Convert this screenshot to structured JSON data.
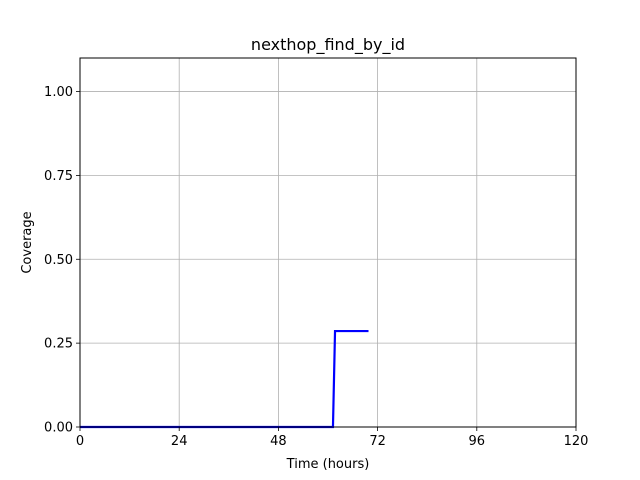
{
  "chart_data": {
    "type": "line",
    "title": "nexthop_find_by_id",
    "xlabel": "Time (hours)",
    "ylabel": "Coverage",
    "xlim": [
      0,
      120
    ],
    "ylim": [
      0,
      1.1
    ],
    "xticks": [
      0,
      24,
      48,
      72,
      96,
      120
    ],
    "xtick_labels": [
      "0",
      "24",
      "48",
      "72",
      "96",
      "120"
    ],
    "yticks": [
      0,
      0.25,
      0.5,
      0.75,
      1.0
    ],
    "ytick_labels": [
      "0.00",
      "0.25",
      "0.50",
      "0.75",
      "1.00"
    ],
    "grid": true,
    "series": [
      {
        "color": "#0000ff",
        "x": [
          0,
          61.2,
          61.7,
          69.8
        ],
        "y": [
          0,
          0,
          0.286,
          0.286
        ]
      }
    ]
  }
}
